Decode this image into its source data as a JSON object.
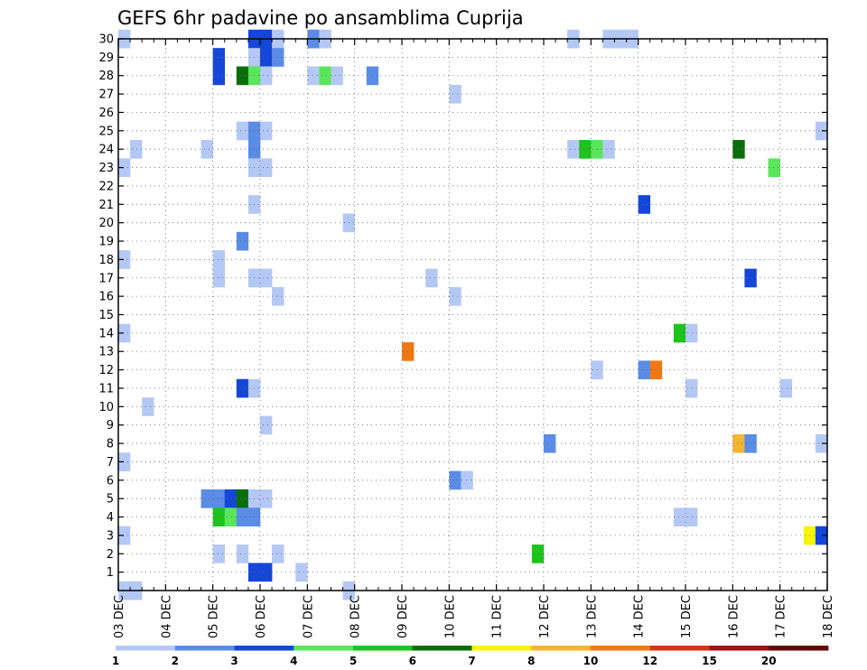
{
  "chart_data": {
    "type": "heatmap",
    "title": "GEFS 6hr padavine po ansamblima Cuprija",
    "xlabel": "",
    "ylabel": "",
    "x_tick_labels": [
      "03 DEC",
      "04 DEC",
      "05 DEC",
      "06 DEC",
      "07 DEC",
      "08 DEC",
      "09 DEC",
      "10 DEC",
      "11 DEC",
      "12 DEC",
      "13 DEC",
      "14 DEC",
      "15 DEC",
      "16 DEC",
      "17 DEC",
      "18 DEC"
    ],
    "xlim": [
      0,
      60
    ],
    "y_tick_labels": [
      "1",
      "2",
      "3",
      "4",
      "5",
      "6",
      "7",
      "8",
      "9",
      "10",
      "11",
      "12",
      "13",
      "14",
      "15",
      "16",
      "17",
      "18",
      "19",
      "20",
      "21",
      "22",
      "23",
      "24",
      "25",
      "26",
      "27",
      "28",
      "29",
      "30"
    ],
    "ylim": [
      0,
      30
    ],
    "grid": "dotted",
    "colorbar": {
      "labels": [
        "1",
        "2",
        "3",
        "4",
        "5",
        "6",
        "7",
        "8",
        "10",
        "12",
        "15",
        "20"
      ],
      "colors": [
        "#b4c8f5",
        "#5a8ce6",
        "#1446d8",
        "#5ae65a",
        "#1ec31e",
        "#0a6e0a",
        "#f5f50a",
        "#f5b432",
        "#f07814",
        "#dc3214",
        "#a01414",
        "#640a0a"
      ]
    },
    "cells": [
      {
        "member": 30,
        "step": 0,
        "class": 1
      },
      {
        "member": 30,
        "step": 11,
        "class": 3
      },
      {
        "member": 30,
        "step": 12,
        "class": 3
      },
      {
        "member": 30,
        "step": 13,
        "class": 1
      },
      {
        "member": 30,
        "step": 16,
        "class": 2
      },
      {
        "member": 30,
        "step": 17,
        "class": 1
      },
      {
        "member": 30,
        "step": 38,
        "class": 1
      },
      {
        "member": 30,
        "step": 41,
        "class": 1
      },
      {
        "member": 30,
        "step": 42,
        "class": 1
      },
      {
        "member": 30,
        "step": 43,
        "class": 1
      },
      {
        "member": 29,
        "step": 8,
        "class": 3
      },
      {
        "member": 29,
        "step": 11,
        "class": 1
      },
      {
        "member": 29,
        "step": 12,
        "class": 3
      },
      {
        "member": 29,
        "step": 13,
        "class": 2
      },
      {
        "member": 28,
        "step": 8,
        "class": 3
      },
      {
        "member": 28,
        "step": 10,
        "class": 6
      },
      {
        "member": 28,
        "step": 11,
        "class": 4
      },
      {
        "member": 28,
        "step": 12,
        "class": 1
      },
      {
        "member": 28,
        "step": 16,
        "class": 1
      },
      {
        "member": 28,
        "step": 17,
        "class": 4
      },
      {
        "member": 28,
        "step": 18,
        "class": 1
      },
      {
        "member": 28,
        "step": 21,
        "class": 2
      },
      {
        "member": 27,
        "step": 28,
        "class": 1
      },
      {
        "member": 25,
        "step": 10,
        "class": 1
      },
      {
        "member": 25,
        "step": 11,
        "class": 2
      },
      {
        "member": 25,
        "step": 12,
        "class": 1
      },
      {
        "member": 25,
        "step": 59,
        "class": 1
      },
      {
        "member": 24,
        "step": 1,
        "class": 1
      },
      {
        "member": 24,
        "step": 7,
        "class": 1
      },
      {
        "member": 24,
        "step": 11,
        "class": 2
      },
      {
        "member": 24,
        "step": 38,
        "class": 1
      },
      {
        "member": 24,
        "step": 39,
        "class": 5
      },
      {
        "member": 24,
        "step": 40,
        "class": 4
      },
      {
        "member": 24,
        "step": 41,
        "class": 1
      },
      {
        "member": 24,
        "step": 52,
        "class": 6
      },
      {
        "member": 23,
        "step": 0,
        "class": 1
      },
      {
        "member": 23,
        "step": 11,
        "class": 1
      },
      {
        "member": 23,
        "step": 12,
        "class": 1
      },
      {
        "member": 23,
        "step": 55,
        "class": 4
      },
      {
        "member": 21,
        "step": 44,
        "class": 3
      },
      {
        "member": 21,
        "step": 11,
        "class": 1
      },
      {
        "member": 20,
        "step": 19,
        "class": 1
      },
      {
        "member": 19,
        "step": 10,
        "class": 2
      },
      {
        "member": 18,
        "step": 0,
        "class": 1
      },
      {
        "member": 18,
        "step": 8,
        "class": 1
      },
      {
        "member": 17,
        "step": 8,
        "class": 1
      },
      {
        "member": 17,
        "step": 11,
        "class": 1
      },
      {
        "member": 17,
        "step": 12,
        "class": 1
      },
      {
        "member": 17,
        "step": 26,
        "class": 1
      },
      {
        "member": 17,
        "step": 53,
        "class": 3
      },
      {
        "member": 16,
        "step": 13,
        "class": 1
      },
      {
        "member": 16,
        "step": 28,
        "class": 1
      },
      {
        "member": 14,
        "step": 0,
        "class": 1
      },
      {
        "member": 14,
        "step": 47,
        "class": 5
      },
      {
        "member": 14,
        "step": 48,
        "class": 1
      },
      {
        "member": 13,
        "step": 24,
        "class": 9
      },
      {
        "member": 12,
        "step": 40,
        "class": 1
      },
      {
        "member": 12,
        "step": 44,
        "class": 2
      },
      {
        "member": 12,
        "step": 45,
        "class": 9
      },
      {
        "member": 11,
        "step": 10,
        "class": 3
      },
      {
        "member": 11,
        "step": 11,
        "class": 1
      },
      {
        "member": 11,
        "step": 48,
        "class": 1
      },
      {
        "member": 11,
        "step": 56,
        "class": 1
      },
      {
        "member": 10,
        "step": 2,
        "class": 1
      },
      {
        "member": 9,
        "step": 12,
        "class": 1
      },
      {
        "member": 8,
        "step": 36,
        "class": 2
      },
      {
        "member": 8,
        "step": 52,
        "class": 8
      },
      {
        "member": 8,
        "step": 53,
        "class": 2
      },
      {
        "member": 8,
        "step": 59,
        "class": 1
      },
      {
        "member": 7,
        "step": 0,
        "class": 1
      },
      {
        "member": 6,
        "step": 28,
        "class": 2
      },
      {
        "member": 6,
        "step": 29,
        "class": 1
      },
      {
        "member": 5,
        "step": 7,
        "class": 2
      },
      {
        "member": 5,
        "step": 8,
        "class": 2
      },
      {
        "member": 5,
        "step": 9,
        "class": 3
      },
      {
        "member": 5,
        "step": 10,
        "class": 6
      },
      {
        "member": 5,
        "step": 11,
        "class": 1
      },
      {
        "member": 5,
        "step": 12,
        "class": 1
      },
      {
        "member": 4,
        "step": 8,
        "class": 5
      },
      {
        "member": 4,
        "step": 9,
        "class": 4
      },
      {
        "member": 4,
        "step": 10,
        "class": 2
      },
      {
        "member": 4,
        "step": 11,
        "class": 2
      },
      {
        "member": 4,
        "step": 47,
        "class": 1
      },
      {
        "member": 4,
        "step": 48,
        "class": 1
      },
      {
        "member": 3,
        "step": 0,
        "class": 1
      },
      {
        "member": 3,
        "step": 58,
        "class": 7
      },
      {
        "member": 3,
        "step": 59,
        "class": 3
      },
      {
        "member": 2,
        "step": 8,
        "class": 1
      },
      {
        "member": 2,
        "step": 10,
        "class": 1
      },
      {
        "member": 2,
        "step": 13,
        "class": 1
      },
      {
        "member": 2,
        "step": 35,
        "class": 5
      },
      {
        "member": 1,
        "step": 11,
        "class": 3
      },
      {
        "member": 1,
        "step": 12,
        "class": 3
      },
      {
        "member": 1,
        "step": 15,
        "class": 1
      },
      {
        "member": 0,
        "step": 0,
        "class": 1
      },
      {
        "member": 0,
        "step": 1,
        "class": 1
      },
      {
        "member": 0,
        "step": 19,
        "class": 1
      }
    ]
  }
}
